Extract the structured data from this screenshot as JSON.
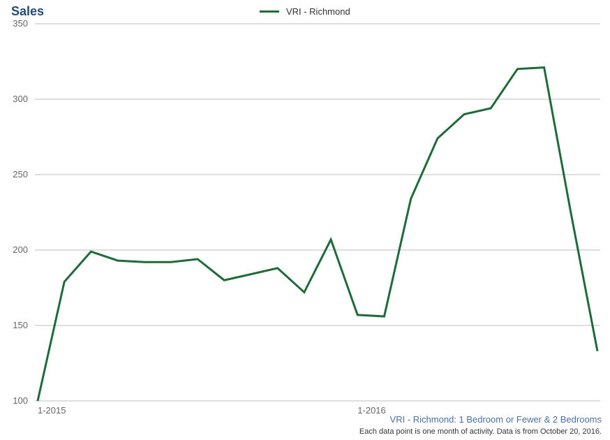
{
  "title": "Sales",
  "legend": {
    "label": "VRI - Richmond",
    "color": "#1e6b3a"
  },
  "subtitle": "VRI - Richmond: 1 Bedroom or Fewer & 2 Bedrooms",
  "footnote": "Each data point is one month of activity. Data is from October 20, 2016.",
  "chart": {
    "type": "line",
    "background_color": "#ffffff",
    "grid_color": "#bdbdbd",
    "line_color": "#1e6b3a",
    "line_width": 3,
    "ylim": [
      100,
      350
    ],
    "ytick_step": 50,
    "yticks": [
      100,
      150,
      200,
      250,
      300,
      350
    ],
    "x_domain_months": 21,
    "xticks": [
      {
        "index": 0,
        "label": "1-2015"
      },
      {
        "index": 12,
        "label": "1-2016"
      }
    ],
    "series": {
      "name": "VRI - Richmond",
      "values": [
        100,
        179,
        199,
        193,
        192,
        192,
        194,
        180,
        184,
        188,
        172,
        207,
        157,
        156,
        234,
        274,
        290,
        294,
        320,
        321,
        225,
        133
      ]
    },
    "title_fontsize": 18,
    "title_color": "#254a7a",
    "label_fontsize": 13,
    "label_color": "#666666",
    "subtitle_color": "#4b6fa5",
    "footnote_color": "#333333"
  }
}
